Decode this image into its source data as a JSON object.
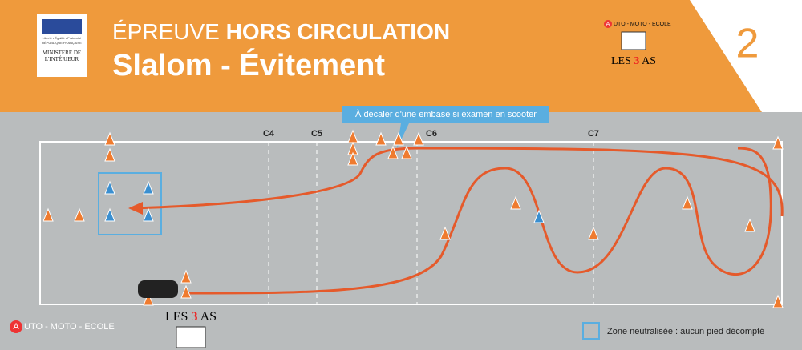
{
  "header": {
    "title_light": "ÉPREUVE",
    "title_bold": "HORS CIRCULATION",
    "subtitle": "Slalom - Évitement",
    "number": "2"
  },
  "ministry": {
    "motto": "Liberté • Égalité • Fraternité",
    "republic": "RÉPUBLIQUE FRANÇAISE",
    "name": "MINISTÈRE DE L'INTÉRIEUR"
  },
  "logo": {
    "initial": "A",
    "school": "UTO - MOTO - ECOLE",
    "les": "LES",
    "three": "3",
    "as": "AS"
  },
  "course": {
    "note": "À décaler d'une embase si examen en scooter",
    "lines": [
      "C4",
      "C5",
      "C6",
      "C7"
    ]
  },
  "legend": {
    "label": "Zone neutralisée : aucun pied décompté"
  }
}
